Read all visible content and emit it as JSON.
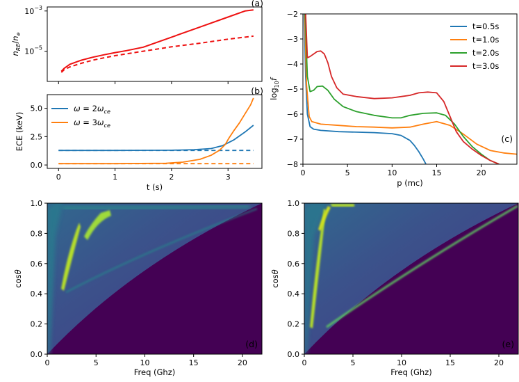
{
  "chart_data": [
    {
      "id": "a",
      "type": "line",
      "panel_label": "(a)",
      "ylabel": "n_RE/n_e",
      "yscale": "log",
      "xlim": [
        -0.2,
        3.6
      ],
      "ylim_log10": [
        -6.5,
        -2.8
      ],
      "yticks": [
        {
          "value": -5,
          "label": "10^-5"
        },
        {
          "value": -3,
          "label": "10^-3"
        }
      ],
      "series": [
        {
          "name": "solid",
          "color": "#ee1111",
          "style": "solid",
          "x": [
            0.05,
            0.1,
            0.2,
            0.4,
            0.6,
            0.8,
            1.0,
            1.2,
            1.5,
            2.0,
            2.5,
            3.0,
            3.3,
            3.45
          ],
          "log10y": [
            -6.0,
            -5.85,
            -5.65,
            -5.45,
            -5.3,
            -5.18,
            -5.07,
            -4.97,
            -4.8,
            -4.3,
            -3.8,
            -3.3,
            -3.0,
            -2.95
          ]
        },
        {
          "name": "dashed",
          "color": "#ee1111",
          "style": "dashed",
          "x": [
            0.05,
            0.1,
            0.2,
            0.4,
            0.6,
            0.8,
            1.0,
            1.5,
            2.0,
            2.5,
            3.0,
            3.45
          ],
          "log10y": [
            -6.05,
            -5.92,
            -5.78,
            -5.6,
            -5.45,
            -5.33,
            -5.22,
            -5.0,
            -4.78,
            -4.6,
            -4.4,
            -4.25
          ]
        }
      ]
    },
    {
      "id": "b",
      "type": "line",
      "panel_label": "(b)",
      "xlabel": "t (s)",
      "ylabel": "ECE (keV)",
      "xlim": [
        -0.2,
        3.6
      ],
      "ylim": [
        -0.3,
        6.2
      ],
      "xticks": [
        0,
        1,
        2,
        3
      ],
      "yticks": [
        0.0,
        2.5,
        5.0
      ],
      "legend": [
        "ω = 2ω_ce",
        "ω = 3ω_ce"
      ],
      "series": [
        {
          "name": "ω = 2ω_ce",
          "color": "#1f77b4",
          "style": "solid",
          "x": [
            0.0,
            1.0,
            2.0,
            2.4,
            2.7,
            2.9,
            3.1,
            3.3,
            3.45
          ],
          "y": [
            1.28,
            1.28,
            1.3,
            1.35,
            1.45,
            1.7,
            2.2,
            2.9,
            3.5
          ]
        },
        {
          "name": "ω = 2ω_ce (dashed)",
          "color": "#1f77b4",
          "style": "dashed",
          "x": [
            0.0,
            3.45
          ],
          "y": [
            1.28,
            1.28
          ]
        },
        {
          "name": "ω = 3ω_ce",
          "color": "#ff7f0e",
          "style": "solid",
          "x": [
            0.0,
            1.0,
            1.9,
            2.2,
            2.5,
            2.7,
            2.85,
            2.95,
            3.02,
            3.1,
            3.2,
            3.3,
            3.4,
            3.45
          ],
          "y": [
            0.12,
            0.12,
            0.15,
            0.25,
            0.5,
            0.85,
            1.3,
            1.8,
            2.4,
            3.0,
            3.7,
            4.5,
            5.3,
            5.9
          ]
        },
        {
          "name": "ω = 3ω_ce (dashed)",
          "color": "#ff7f0e",
          "style": "dashed",
          "x": [
            0.0,
            3.45
          ],
          "y": [
            0.12,
            0.12
          ]
        }
      ]
    },
    {
      "id": "c",
      "type": "line",
      "panel_label": "(c)",
      "xlabel": "p (mc)",
      "ylabel": "log10 f",
      "xlim": [
        0,
        24
      ],
      "ylim": [
        -8,
        -2
      ],
      "xticks": [
        0,
        5,
        10,
        15,
        20
      ],
      "yticks": [
        -8,
        -7,
        -6,
        -5,
        -4,
        -3,
        -2
      ],
      "legend": [
        "t=0.5s",
        "t=1.0s",
        "t=2.0s",
        "t=3.0s"
      ],
      "series": [
        {
          "name": "t=0.5s",
          "color": "#1f77b4",
          "x": [
            0.15,
            0.3,
            0.5,
            0.8,
            1.2,
            2,
            4,
            6,
            8,
            10,
            11,
            12,
            12.5,
            13,
            13.5,
            13.8
          ],
          "y": [
            -2.0,
            -4.5,
            -6.0,
            -6.5,
            -6.6,
            -6.65,
            -6.7,
            -6.72,
            -6.74,
            -6.78,
            -6.85,
            -7.05,
            -7.25,
            -7.5,
            -7.8,
            -8.0
          ]
        },
        {
          "name": "t=1.0s",
          "color": "#ff7f0e",
          "x": [
            0.2,
            0.4,
            0.7,
            1.0,
            2,
            4,
            6,
            8,
            10,
            12,
            13.5,
            15,
            16.5,
            18,
            19.5,
            21,
            22.5,
            24
          ],
          "y": [
            -2.0,
            -4.8,
            -6.1,
            -6.3,
            -6.4,
            -6.45,
            -6.5,
            -6.52,
            -6.55,
            -6.52,
            -6.4,
            -6.3,
            -6.45,
            -6.8,
            -7.2,
            -7.45,
            -7.55,
            -7.6
          ]
        },
        {
          "name": "t=2.0s",
          "color": "#2ca02c",
          "x": [
            0.25,
            0.5,
            0.8,
            1.2,
            1.6,
            2.2,
            2.8,
            3.5,
            4.5,
            6,
            8,
            10,
            11,
            12,
            13.5,
            15,
            16,
            17,
            18,
            19,
            20,
            21,
            22
          ],
          "y": [
            -2.0,
            -4.5,
            -5.1,
            -5.05,
            -4.9,
            -4.88,
            -5.05,
            -5.4,
            -5.7,
            -5.9,
            -6.05,
            -6.15,
            -6.15,
            -6.05,
            -5.97,
            -5.95,
            -6.05,
            -6.4,
            -6.9,
            -7.3,
            -7.6,
            -7.85,
            -8.0
          ]
        },
        {
          "name": "t=3.0s",
          "color": "#d62728",
          "x": [
            0.3,
            0.5,
            0.8,
            1.2,
            1.6,
            2.0,
            2.4,
            2.8,
            3.2,
            3.8,
            4.5,
            6,
            8,
            10,
            11,
            12,
            13,
            14,
            15,
            15.8,
            16.5,
            17.2,
            18,
            19,
            20,
            21,
            22
          ],
          "y": [
            -2.0,
            -3.75,
            -3.7,
            -3.6,
            -3.5,
            -3.48,
            -3.6,
            -3.95,
            -4.5,
            -4.95,
            -5.2,
            -5.3,
            -5.38,
            -5.35,
            -5.3,
            -5.25,
            -5.15,
            -5.12,
            -5.15,
            -5.5,
            -6.1,
            -6.7,
            -7.1,
            -7.4,
            -7.65,
            -7.85,
            -8.0
          ]
        }
      ]
    },
    {
      "id": "d",
      "type": "heatmap",
      "panel_label": "(d)",
      "xlabel": "Freq (Ghz)",
      "ylabel": "cosθ",
      "xlim": [
        0,
        22
      ],
      "ylim": [
        0,
        1
      ],
      "xticks": [
        0,
        5,
        10,
        15,
        20
      ],
      "yticks": [
        0.0,
        0.2,
        0.4,
        0.6,
        0.8,
        1.0
      ],
      "colormap": [
        "#440154",
        "#3b528b",
        "#21918c",
        "#5ec962",
        "#b5de2b"
      ]
    },
    {
      "id": "e",
      "type": "heatmap",
      "panel_label": "(e)",
      "xlabel": "Freq (Ghz)",
      "ylabel": "cosθ",
      "xlim": [
        0,
        22
      ],
      "ylim": [
        0,
        1
      ],
      "xticks": [
        0,
        5,
        10,
        15,
        20
      ],
      "yticks": [
        0.0,
        0.2,
        0.4,
        0.6,
        0.8,
        1.0
      ],
      "colormap": [
        "#440154",
        "#3b528b",
        "#21918c",
        "#5ec962",
        "#b5de2b"
      ]
    }
  ]
}
